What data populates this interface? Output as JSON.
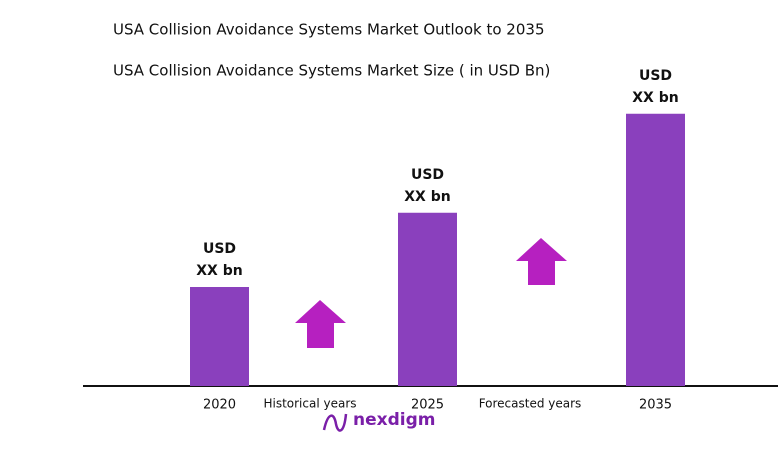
{
  "chart_data": {
    "type": "bar",
    "title": "USA Collision Avoidance Systems Market Outlook to 2035",
    "subtitle": "USA Collision Avoidance Systems Market Size ( in USD Bn)",
    "categories": [
      "2020",
      "2025",
      "2035"
    ],
    "values": [
      1,
      1.75,
      2.75
    ],
    "value_labels": [
      [
        "USD",
        "XX bn"
      ],
      [
        "USD",
        "XX bn"
      ],
      [
        "USD",
        "XX bn"
      ]
    ],
    "color": "#8a40bd",
    "ylim": [
      0,
      3
    ],
    "annotations": [
      "Historical years",
      "Forecasted years"
    ],
    "logo": "nexdigm"
  }
}
